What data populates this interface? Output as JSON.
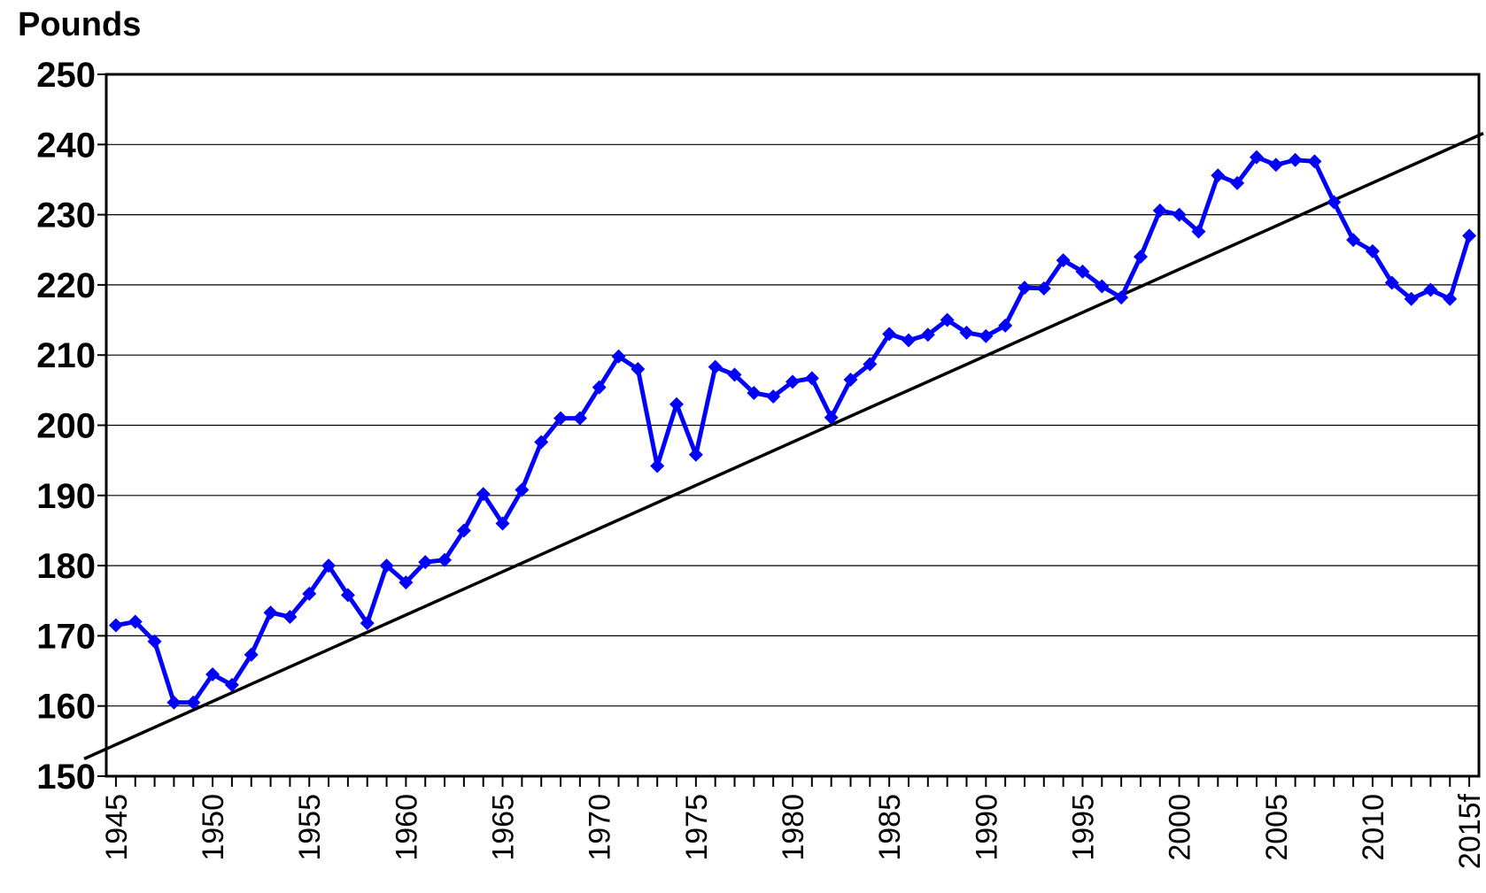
{
  "chart_data": {
    "type": "line",
    "y_label": "Pounds",
    "categories": [
      "1945",
      null,
      null,
      null,
      null,
      "1950",
      null,
      null,
      null,
      null,
      "1955",
      null,
      null,
      null,
      null,
      "1960",
      null,
      null,
      null,
      null,
      "1965",
      null,
      null,
      null,
      null,
      "1970",
      null,
      null,
      null,
      null,
      "1975",
      null,
      null,
      null,
      null,
      "1980",
      null,
      null,
      null,
      null,
      "1985",
      null,
      null,
      null,
      null,
      "1990",
      null,
      null,
      null,
      null,
      "1995",
      null,
      null,
      null,
      null,
      "2000",
      null,
      null,
      null,
      null,
      "2005",
      null,
      null,
      null,
      null,
      "2010",
      null,
      null,
      null,
      null,
      "2015f"
    ],
    "series": [
      {
        "color": "#0000ff",
        "values": [
          171.5,
          172,
          169.2,
          160.5,
          160.5,
          164.5,
          163,
          167.3,
          173.3,
          172.7,
          176,
          180,
          175.8,
          171.8,
          180,
          177.6,
          180.5,
          180.8,
          185,
          190.2,
          186,
          190.8,
          197.6,
          201,
          201,
          205.4,
          209.8,
          208,
          194.2,
          203,
          195.8,
          208.3,
          207.2,
          204.6,
          204.1,
          206.2,
          206.7,
          201.1,
          206.5,
          208.7,
          213,
          212.1,
          212.9,
          215,
          213.2,
          212.7,
          214.2,
          219.6,
          219.5,
          223.5,
          221.9,
          219.8,
          218.2,
          224,
          230.6,
          230,
          227.6,
          235.6,
          234.5,
          238.2,
          237.1,
          237.8,
          237.6,
          231.8,
          226.4,
          224.8,
          220.3,
          218,
          219.3,
          218,
          227
        ]
      }
    ],
    "trendline": {
      "color": "#000000",
      "values": [
        154.5,
        240.7
      ]
    },
    "ylim": [
      150,
      250
    ],
    "yticks": [
      150,
      160,
      170,
      180,
      190,
      200,
      210,
      220,
      230,
      240,
      250
    ],
    "grid": true
  }
}
